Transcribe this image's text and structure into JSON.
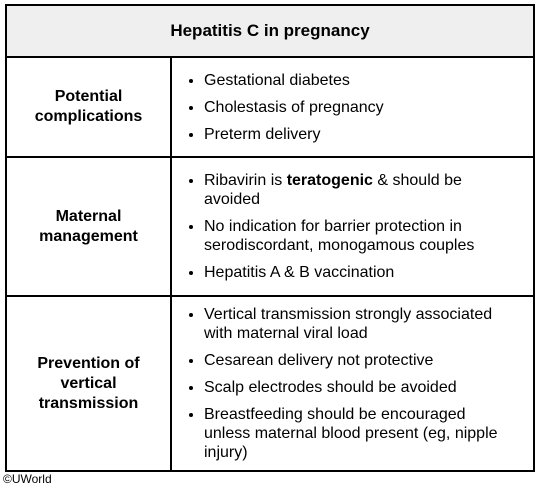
{
  "title": "Hepatitis C in pregnancy",
  "rows": [
    {
      "heading": "Potential complications",
      "items": [
        [
          "Gestational diabetes"
        ],
        [
          "Cholestasis of pregnancy"
        ],
        [
          "Preterm delivery"
        ]
      ]
    },
    {
      "heading": "Maternal management",
      "items": [
        [
          "Ribavirin is ",
          "teratogenic",
          " & should be avoided"
        ],
        [
          "No indication for barrier protection in serodiscordant, monogamous couples"
        ],
        [
          "Hepatitis A & B vaccination"
        ]
      ]
    },
    {
      "heading": "Prevention of vertical transmission",
      "items": [
        [
          "Vertical transmission strongly associated with maternal viral load"
        ],
        [
          "Cesarean delivery not protective"
        ],
        [
          "Scalp electrodes should be avoided"
        ],
        [
          "Breastfeeding should be encouraged unless maternal blood present (eg, nipple injury)"
        ]
      ]
    }
  ],
  "bold_parts": [
    [
      1,
      0,
      1
    ]
  ],
  "footer": "©UWorld"
}
